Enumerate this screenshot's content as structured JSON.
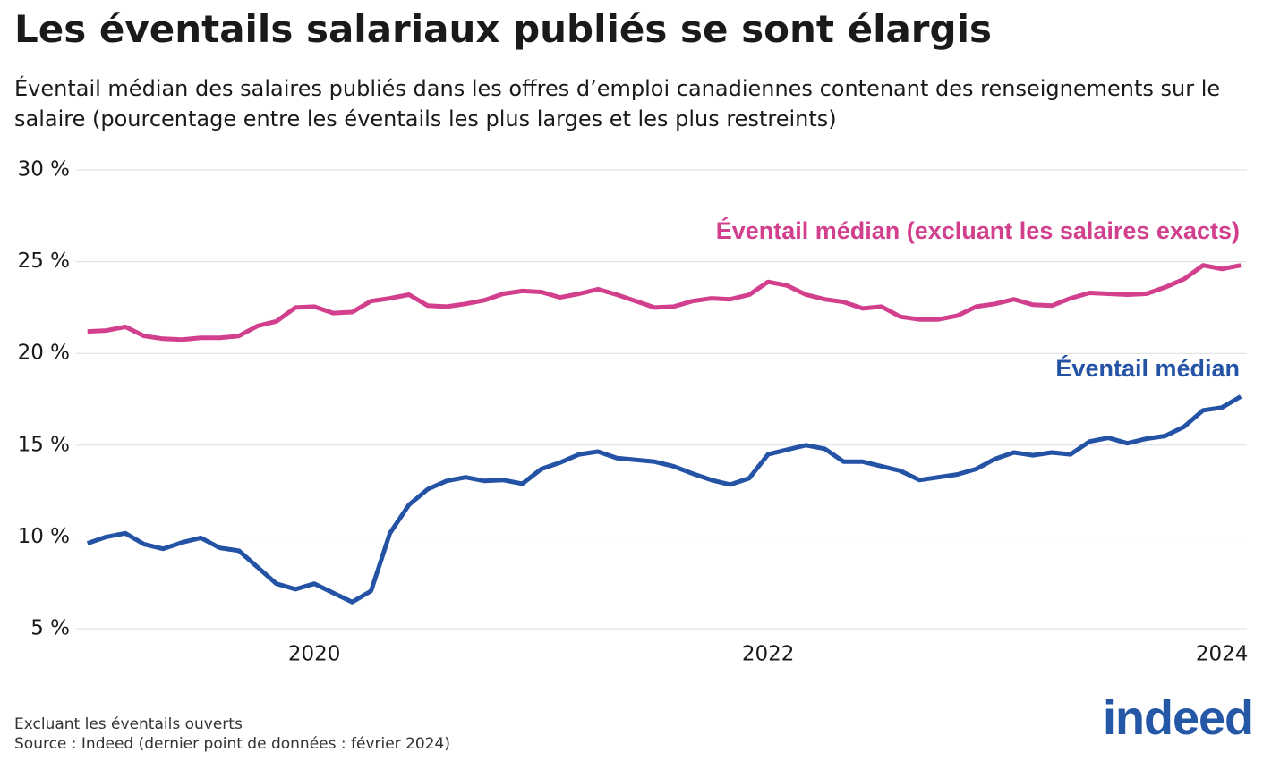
{
  "chart_data": {
    "type": "line",
    "title": "Les éventails salariaux publiés se sont élargis",
    "subtitle": "Éventail médian des salaires publiés dans les offres d’emploi canadiennes contenant des renseignements sur le salaire (pourcentage entre les éventails les plus larges et les plus restreints)",
    "notes": [
      "Excluant les éventails ouverts",
      "Source : Indeed (dernier point de données : février 2024)"
    ],
    "logo": "indeed",
    "x": [
      2019.0,
      2019.083,
      2019.167,
      2019.25,
      2019.333,
      2019.417,
      2019.5,
      2019.583,
      2019.667,
      2019.75,
      2019.833,
      2019.917,
      2020.0,
      2020.083,
      2020.167,
      2020.25,
      2020.333,
      2020.417,
      2020.5,
      2020.583,
      2020.667,
      2020.75,
      2020.833,
      2020.917,
      2021.0,
      2021.083,
      2021.167,
      2021.25,
      2021.333,
      2021.417,
      2021.5,
      2021.583,
      2021.667,
      2021.75,
      2021.833,
      2021.917,
      2022.0,
      2022.083,
      2022.167,
      2022.25,
      2022.333,
      2022.417,
      2022.5,
      2022.583,
      2022.667,
      2022.75,
      2022.833,
      2022.917,
      2023.0,
      2023.083,
      2023.167,
      2023.25,
      2023.333,
      2023.417,
      2023.5,
      2023.583,
      2023.667,
      2023.75,
      2023.833,
      2023.917,
      2024.0,
      2024.083
    ],
    "xlim": [
      2018.95,
      2024.11
    ],
    "xticks": [
      2020,
      2022,
      2024
    ],
    "ylim": [
      5,
      30
    ],
    "yticks": [
      {
        "value": 5,
        "label": "5 %"
      },
      {
        "value": 10,
        "label": "10 %"
      },
      {
        "value": 15,
        "label": "15 %"
      },
      {
        "value": 20,
        "label": "20 %"
      },
      {
        "value": 25,
        "label": "25 %"
      },
      {
        "value": 30,
        "label": "30 %"
      }
    ],
    "grid": true,
    "series": [
      {
        "name": "Éventail médian (excluant les salaires exacts)",
        "color": "#d13f8d",
        "values": [
          21.2,
          21.25,
          21.45,
          20.95,
          20.8,
          20.75,
          20.85,
          20.85,
          20.95,
          21.5,
          21.75,
          22.5,
          22.55,
          22.2,
          22.25,
          22.85,
          23.0,
          23.2,
          22.6,
          22.55,
          22.7,
          22.9,
          23.25,
          23.4,
          23.35,
          23.05,
          23.25,
          23.5,
          23.2,
          22.85,
          22.5,
          22.55,
          22.85,
          23.0,
          22.95,
          23.2,
          23.9,
          23.7,
          23.2,
          22.95,
          22.8,
          22.45,
          22.55,
          22.0,
          21.85,
          21.85,
          22.05,
          22.55,
          22.7,
          22.95,
          22.65,
          22.6,
          23.0,
          23.3,
          23.25,
          23.2,
          23.25,
          23.6,
          24.05,
          24.8,
          24.6,
          24.8
        ]
      },
      {
        "name": "Éventail médian",
        "color": "#2453a6",
        "values": [
          9.65,
          10.0,
          10.2,
          9.6,
          9.35,
          9.7,
          9.95,
          9.4,
          9.25,
          8.35,
          7.45,
          7.15,
          7.45,
          6.95,
          6.45,
          7.05,
          10.2,
          11.75,
          12.6,
          13.05,
          13.25,
          13.05,
          13.1,
          12.9,
          13.7,
          14.05,
          14.5,
          14.65,
          14.3,
          14.2,
          14.1,
          13.85,
          13.45,
          13.1,
          12.85,
          13.2,
          14.5,
          14.75,
          15.0,
          14.8,
          14.1,
          14.1,
          13.85,
          13.6,
          13.1,
          13.25,
          13.4,
          13.7,
          14.25,
          14.6,
          14.45,
          14.6,
          14.5,
          15.2,
          15.4,
          15.1,
          15.35,
          15.5,
          16.0,
          16.9,
          17.05,
          17.65
        ]
      }
    ]
  }
}
